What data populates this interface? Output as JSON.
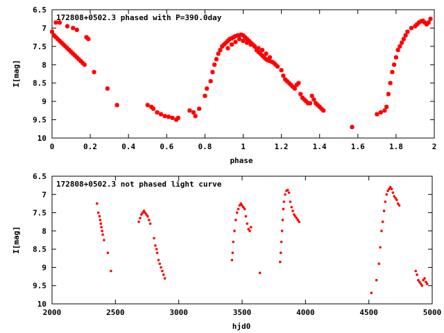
{
  "colors": {
    "marker": "#ff0000",
    "axis": "#000000",
    "background": "#ffffff"
  },
  "chart_data": [
    {
      "type": "scatter",
      "title": "172808+0502.3 phased with P=390.0day",
      "xlabel": "phase",
      "ylabel": "I[mag]",
      "xlim": [
        0,
        2
      ],
      "ylim": [
        10,
        6.5
      ],
      "y_inverted": true,
      "grid": false,
      "marker": "plus-cross",
      "xticks": [
        "0",
        "0.2",
        "0.4",
        "0.6",
        "0.8",
        "1",
        "1.2",
        "1.4",
        "1.6",
        "1.8",
        "2"
      ],
      "xtick_values": [
        0,
        0.2,
        0.4,
        0.6,
        0.8,
        1,
        1.2,
        1.4,
        1.6,
        1.8,
        2
      ],
      "yticks": [
        "6.5",
        "7",
        "7.5",
        "8",
        "8.5",
        "9",
        "9.5",
        "10"
      ],
      "ytick_values": [
        6.5,
        7,
        7.5,
        8,
        8.5,
        9,
        9.5,
        10
      ],
      "series": [
        {
          "x": [
            0.0,
            0.01,
            0.02,
            0.03,
            0.04,
            0.05,
            0.06,
            0.07,
            0.08,
            0.09,
            0.1,
            0.11,
            0.12,
            0.13,
            0.14,
            0.15,
            0.16,
            0.17,
            0.02,
            0.04,
            0.08,
            0.11,
            0.13,
            0.18,
            0.19,
            0.22,
            0.29,
            0.34,
            0.5,
            0.52,
            0.53,
            0.55,
            0.57,
            0.59,
            0.61,
            0.63,
            0.65,
            0.66,
            0.72,
            0.74,
            0.75,
            0.77,
            0.8,
            0.81,
            0.83,
            0.84,
            0.85,
            0.86,
            0.87,
            0.88,
            0.89,
            0.9,
            0.91,
            0.92,
            0.93,
            0.94,
            0.95,
            0.96,
            0.97,
            0.98,
            0.99,
            1.0,
            1.01,
            1.02,
            1.03,
            1.04,
            1.05,
            1.06,
            1.07,
            1.08,
            1.09,
            1.1,
            1.11,
            1.12,
            1.13,
            1.14,
            1.15,
            1.16,
            1.17,
            1.18,
            0.92,
            0.94,
            0.96,
            0.98,
            1.0,
            1.02,
            1.04,
            1.06,
            1.08,
            1.1,
            1.12,
            1.14,
            1.2,
            1.21,
            1.22,
            1.23,
            1.24,
            1.25,
            1.26,
            1.27,
            1.28,
            1.29,
            1.3,
            1.31,
            1.32,
            1.33,
            1.34,
            1.35,
            1.36,
            1.37,
            1.38,
            1.39,
            1.4,
            1.41,
            1.42,
            1.57,
            1.7,
            1.72,
            1.74,
            1.75,
            1.76,
            1.77,
            1.78,
            1.79,
            1.8,
            1.81,
            1.82,
            1.83,
            1.84,
            1.85,
            1.86,
            1.88,
            1.9,
            1.91,
            1.92,
            1.93,
            1.94,
            1.95,
            1.96,
            1.97,
            1.98
          ],
          "y": [
            7.1,
            7.2,
            7.25,
            7.3,
            7.35,
            7.4,
            7.45,
            7.5,
            7.55,
            7.6,
            7.65,
            7.7,
            7.75,
            7.8,
            7.85,
            7.9,
            7.95,
            8.0,
            6.85,
            6.85,
            6.95,
            7.0,
            7.05,
            7.25,
            7.3,
            8.2,
            8.65,
            9.1,
            9.1,
            9.15,
            9.2,
            9.3,
            9.35,
            9.4,
            9.42,
            9.45,
            9.5,
            9.45,
            9.25,
            9.3,
            9.4,
            9.2,
            8.85,
            8.65,
            8.45,
            8.2,
            8.0,
            7.85,
            7.7,
            7.6,
            7.5,
            7.45,
            7.4,
            7.35,
            7.3,
            7.28,
            7.25,
            7.22,
            7.2,
            7.2,
            7.18,
            7.2,
            7.25,
            7.3,
            7.35,
            7.4,
            7.45,
            7.5,
            7.6,
            7.65,
            7.7,
            7.75,
            7.8,
            7.85,
            7.88,
            7.9,
            7.92,
            7.95,
            8.0,
            8.05,
            7.55,
            7.45,
            7.38,
            7.3,
            7.35,
            7.4,
            7.45,
            7.5,
            7.55,
            7.6,
            7.7,
            7.8,
            8.15,
            8.3,
            8.4,
            8.45,
            8.5,
            8.55,
            8.6,
            8.65,
            8.55,
            8.5,
            8.8,
            8.9,
            8.95,
            9.0,
            9.05,
            9.05,
            8.85,
            8.95,
            9.05,
            9.1,
            9.15,
            9.2,
            9.25,
            9.7,
            9.35,
            9.3,
            9.25,
            9.15,
            8.8,
            8.5,
            8.2,
            8.0,
            7.8,
            7.6,
            7.5,
            7.4,
            7.3,
            7.2,
            7.1,
            7.0,
            6.95,
            6.9,
            6.85,
            6.82,
            6.8,
            6.85,
            6.9,
            6.85,
            6.75
          ]
        }
      ]
    },
    {
      "type": "scatter",
      "title": "172808+0502.3 not phased light curve",
      "xlabel": "hjd0",
      "ylabel": "I[mag]",
      "xlim": [
        2000,
        5000
      ],
      "ylim": [
        10,
        6.5
      ],
      "y_inverted": true,
      "grid": false,
      "marker": "dot",
      "xticks": [
        "2000",
        "2500",
        "3000",
        "3500",
        "4000",
        "4500",
        "5000"
      ],
      "xtick_values": [
        2000,
        2500,
        3000,
        3500,
        4000,
        4500,
        5000
      ],
      "yticks": [
        "6.5",
        "7",
        "7.5",
        "8",
        "8.5",
        "9",
        "9.5",
        "10"
      ],
      "ytick_values": [
        6.5,
        7,
        7.5,
        8,
        8.5,
        9,
        9.5,
        10
      ],
      "series": [
        {
          "x": [
            2355,
            2365,
            2375,
            2380,
            2385,
            2390,
            2395,
            2400,
            2410,
            2440,
            2465,
            2685,
            2695,
            2705,
            2715,
            2725,
            2735,
            2745,
            2755,
            2765,
            2775,
            2805,
            2815,
            2825,
            2830,
            2840,
            2850,
            2860,
            2870,
            2880,
            2890,
            3420,
            3425,
            3430,
            3440,
            3450,
            3460,
            3470,
            3480,
            3490,
            3500,
            3510,
            3520,
            3530,
            3540,
            3550,
            3560,
            3570,
            3640,
            3800,
            3805,
            3810,
            3815,
            3820,
            3825,
            3830,
            3840,
            3850,
            3860,
            3870,
            3880,
            3890,
            3900,
            3910,
            3920,
            3930,
            3940,
            3950,
            4520,
            4560,
            4580,
            4590,
            4600,
            4610,
            4620,
            4630,
            4640,
            4650,
            4660,
            4670,
            4680,
            4690,
            4700,
            4710,
            4720,
            4730,
            4740,
            4870,
            4880,
            4890,
            4900,
            4910,
            4920,
            4930,
            4940,
            4950,
            4960
          ],
          "y": [
            7.25,
            7.5,
            7.6,
            7.7,
            7.8,
            7.9,
            8.0,
            8.1,
            8.25,
            8.6,
            9.1,
            7.75,
            7.65,
            7.55,
            7.5,
            7.45,
            7.5,
            7.55,
            7.6,
            7.7,
            7.8,
            8.2,
            8.4,
            8.5,
            8.6,
            8.8,
            8.9,
            9.0,
            9.1,
            9.2,
            9.3,
            8.8,
            8.6,
            8.3,
            8.0,
            7.7,
            7.5,
            7.4,
            7.3,
            7.25,
            7.3,
            7.35,
            7.4,
            7.6,
            7.8,
            7.95,
            8.0,
            7.9,
            9.15,
            8.85,
            8.6,
            8.3,
            8.0,
            7.7,
            7.4,
            7.2,
            7.0,
            6.9,
            6.88,
            6.95,
            7.2,
            7.35,
            7.45,
            7.55,
            7.6,
            7.65,
            7.7,
            7.75,
            9.7,
            9.35,
            8.9,
            8.45,
            8.0,
            7.75,
            7.45,
            7.2,
            7.0,
            6.9,
            6.85,
            6.8,
            6.85,
            6.95,
            7.05,
            7.1,
            7.15,
            7.25,
            7.3,
            9.1,
            9.2,
            9.35,
            9.4,
            9.45,
            9.5,
            9.35,
            9.3,
            9.4,
            9.45
          ]
        }
      ]
    }
  ]
}
